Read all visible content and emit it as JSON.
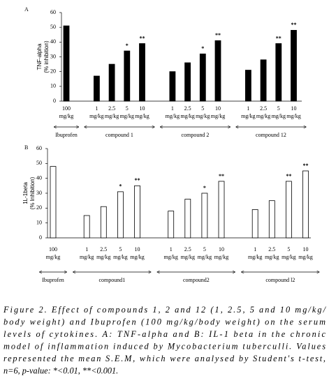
{
  "chart_data": [
    {
      "type": "bar",
      "panel": "A",
      "y_label": [
        "TNF-alpha",
        "(% inhibition)"
      ],
      "categories": [
        "100 mg/kg",
        null,
        "1 mg/kg",
        "2.5 mg/kg",
        "5 mg/kg",
        "10 mg/kg",
        null,
        "1 mg/kg",
        "2.5 mg/kg",
        "5 mg/kg",
        "10 mg/kg",
        null,
        "1 mg/kg",
        "2.5 mg/kg",
        "5 mg/kg",
        "10 mg/kg"
      ],
      "values": [
        51,
        null,
        17,
        25,
        34,
        39,
        null,
        20,
        26,
        32,
        41,
        null,
        21,
        28,
        39,
        48
      ],
      "annotations": [
        null,
        null,
        null,
        null,
        "*",
        "**",
        null,
        null,
        null,
        "*",
        "**",
        null,
        null,
        null,
        "**",
        "**"
      ],
      "groups": [
        "Ibuprofen",
        "compound 1",
        "compound 2",
        "compound 12"
      ],
      "color": "#000000",
      "fill": "#000000",
      "ylim": [
        0,
        60
      ],
      "yticks": [
        0,
        10,
        20,
        30,
        40,
        50,
        60
      ]
    },
    {
      "type": "bar",
      "panel": "B",
      "y_label": [
        "1L-1beta",
        "(% Inhibition)"
      ],
      "categories": [
        "100 mg/kg",
        null,
        "1 mg/kg",
        "2.5 mg/kg",
        "5 mg/kg",
        "10 mg/kg",
        null,
        "1 mg/kg",
        "2.5 mg/kg",
        "5 mg/kg",
        "10 mg/kg",
        null,
        "1 mg/kg",
        "2.5 mg/kg",
        "5 mg/kg",
        "10 mg/kg"
      ],
      "values": [
        48,
        null,
        15,
        21,
        31,
        35,
        null,
        18,
        26,
        30,
        38,
        null,
        19,
        25,
        38,
        45
      ],
      "annotations": [
        null,
        null,
        null,
        null,
        "*",
        "**",
        null,
        null,
        null,
        "*",
        "**",
        null,
        null,
        null,
        "**",
        "**"
      ],
      "groups": [
        "Ibuprofen",
        "compound1",
        "compound2",
        "compound l2"
      ],
      "color": "#000000",
      "fill": "#ffffff",
      "ylim": [
        0,
        60
      ],
      "yticks": [
        0,
        10,
        20,
        30,
        40,
        50,
        60
      ]
    }
  ],
  "caption": [
    "Figure 2. Effect of compounds 1, 2 and 12 (1, 2.5, 5 and 10 mg/kg/",
    "body weight) and Ibuprofen (100 mg/kg/body weight) on the serum",
    "levels of cytokines. A: TNF-alpha and B: IL-1 beta in the chronic",
    "model of inflammation induced by Mycobacterium tuberculli. Values",
    "represented the mean S.E.M, which were analysed by Student's t-test,",
    "n=6, p-value: *<0.01, **<0.001."
  ]
}
